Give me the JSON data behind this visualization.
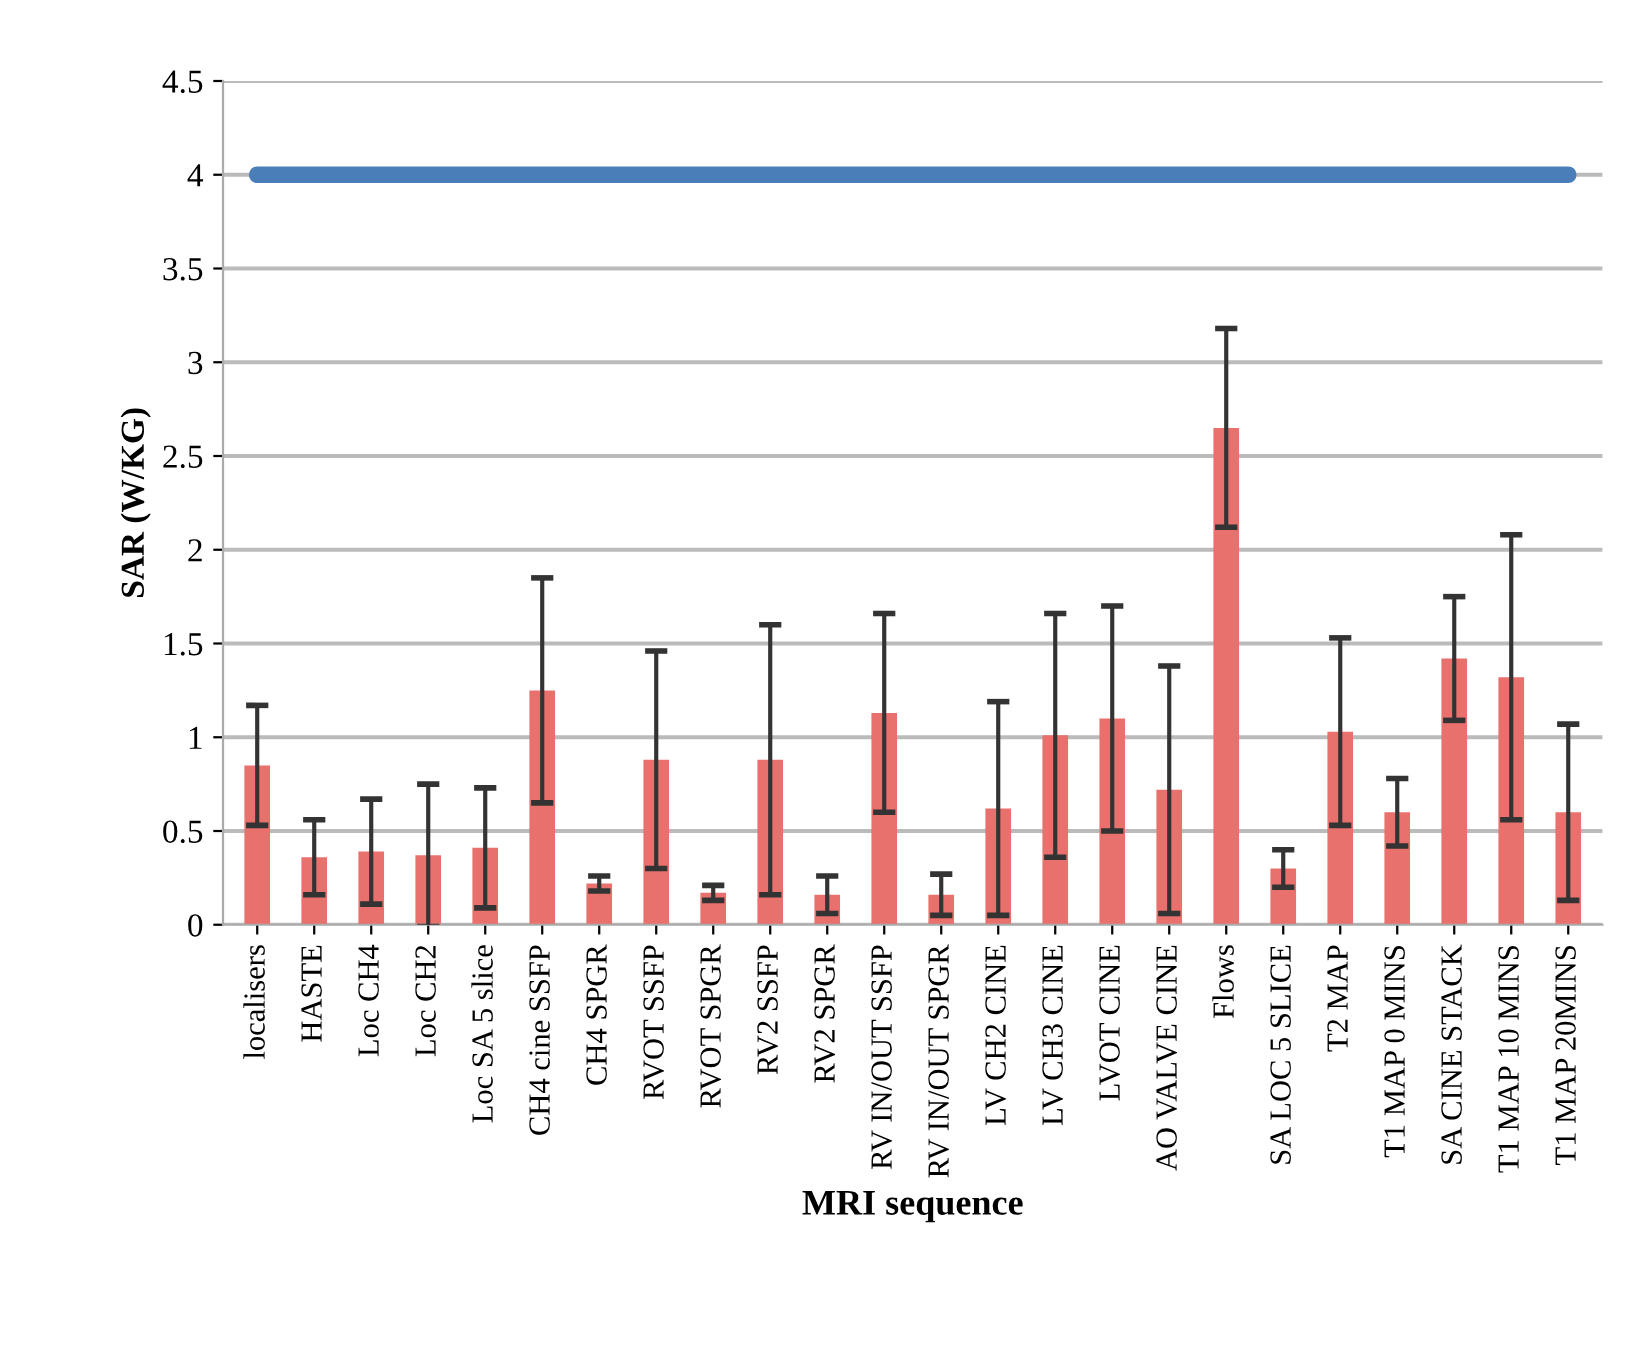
{
  "chart_data": {
    "type": "bar",
    "xlabel": "MRI sequence",
    "ylabel": "SAR (W/KG)",
    "categories": [
      "localisers",
      "HASTE",
      "Loc CH4",
      "Loc CH2",
      "Loc SA 5 slice",
      "CH4 cine SSFP",
      "CH4 SPGR",
      "RVOT SSFP",
      "RVOT SPGR",
      "RV2 SSFP",
      "RV2 SPGR",
      "RV IN/OUT SSFP",
      "RV IN/OUT SPGR",
      "LV CH2 CINE",
      "LV CH3 CINE",
      "LVOT CINE",
      "AO VALVE CINE",
      "Flows",
      "SA LOC 5 SLICE",
      "T2 MAP",
      "T1 MAP 0 MINS",
      "SA CINE STACK",
      "T1 MAP 10 MINS",
      "T1 MAP 20MINS"
    ],
    "series": [
      {
        "color": "#e8716d",
        "values": [
          0.85,
          0.36,
          0.39,
          0.37,
          0.41,
          1.25,
          0.22,
          0.88,
          0.17,
          0.88,
          0.16,
          1.13,
          0.16,
          0.62,
          1.01,
          1.1,
          0.72,
          2.65,
          0.3,
          1.03,
          0.6,
          1.42,
          1.32,
          0.6
        ],
        "errors": [
          0.32,
          0.2,
          0.28,
          0.38,
          0.32,
          0.6,
          0.04,
          0.58,
          0.04,
          0.72,
          0.1,
          0.53,
          0.11,
          0.57,
          0.65,
          0.6,
          0.66,
          0.53,
          0.1,
          0.5,
          0.18,
          0.33,
          0.76,
          0.47
        ]
      },
      {
        "type": "line",
        "color": "#4a7eb8",
        "values": [
          4,
          4,
          4,
          4,
          4,
          4,
          4,
          4,
          4,
          4,
          4,
          4,
          4,
          4,
          4,
          4,
          4,
          4,
          4,
          4,
          4,
          4,
          4,
          4
        ]
      }
    ],
    "ylim": [
      0,
      4.5
    ],
    "yticks": [
      0,
      0.5,
      1,
      1.5,
      2,
      2.5,
      3,
      3.5,
      4,
      4.5
    ],
    "grid": "y",
    "legend": false
  }
}
